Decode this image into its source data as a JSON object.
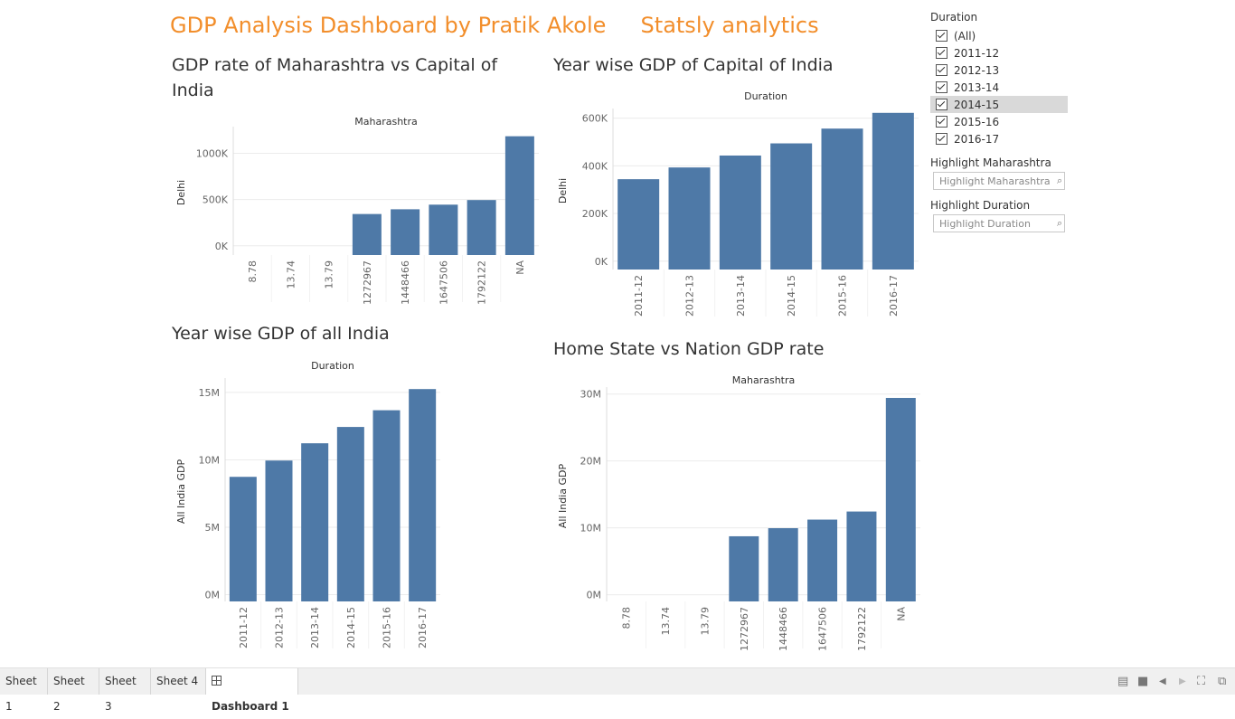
{
  "header": {
    "title": "GDP Analysis Dashboard by Pratik Akole     Statsly analytics"
  },
  "sheets": {
    "maha_vs_capital": "GDP rate of Maharashtra vs Capital of India",
    "capital_yearwise": "Year wise GDP of Capital of  India",
    "india_yearwise": "Year wise GDP of all India",
    "home_vs_nation": "Home State vs Nation GDP rate"
  },
  "chart_data": [
    {
      "type": "bar",
      "column_header": "Maharashtra",
      "ylabel": "Delhi",
      "categories": [
        "8.78",
        "13.74",
        "13.79",
        "1272967",
        "1448466",
        "1647506",
        "1792122",
        "NA"
      ],
      "values": [
        0,
        0,
        0,
        343798,
        395000,
        445000,
        495000,
        1185000
      ],
      "ylim": [
        -100000,
        1250000
      ],
      "yticks": [
        0,
        500000,
        1000000
      ],
      "ytick_labels": [
        "0K",
        "500K",
        "1000K"
      ],
      "grid": true
    },
    {
      "type": "bar",
      "column_header": "Duration",
      "ylabel": "Delhi",
      "categories": [
        "2011-12",
        "2012-13",
        "2013-14",
        "2014-15",
        "2015-16",
        "2016-17"
      ],
      "values": [
        343798,
        393000,
        443000,
        494000,
        556000,
        622000
      ],
      "ylim": [
        -35000,
        625000
      ],
      "yticks": [
        0,
        200000,
        400000,
        600000
      ],
      "ytick_labels": [
        "0K",
        "200K",
        "400K",
        "600K"
      ],
      "grid": true
    },
    {
      "type": "bar",
      "column_header": "Duration",
      "ylabel": "All India GDP",
      "categories": [
        "2011-12",
        "2012-13",
        "2013-14",
        "2014-15",
        "2015-16",
        "2016-17"
      ],
      "values": [
        8740000,
        9950000,
        11230000,
        12440000,
        13680000,
        15250000
      ],
      "ylim": [
        -500000,
        15800000
      ],
      "yticks": [
        0,
        5000000,
        10000000,
        15000000
      ],
      "ytick_labels": [
        "0M",
        "5M",
        "10M",
        "15M"
      ],
      "grid": true
    },
    {
      "type": "bar",
      "column_header": "Maharashtra",
      "ylabel": "All India GDP",
      "categories": [
        "8.78",
        "13.74",
        "13.79",
        "1272967",
        "1448466",
        "1647506",
        "1792122",
        "NA"
      ],
      "values": [
        0,
        0,
        0,
        8740000,
        9950000,
        11230000,
        12440000,
        29420000
      ],
      "ylim": [
        -1000000,
        30500000
      ],
      "yticks": [
        0,
        10000000,
        20000000,
        30000000
      ],
      "ytick_labels": [
        "0M",
        "10M",
        "20M",
        "30M"
      ],
      "grid": true
    }
  ],
  "filters": {
    "duration": {
      "title": "Duration",
      "options": [
        "(All)",
        "2011-12",
        "2012-13",
        "2013-14",
        "2014-15",
        "2015-16",
        "2016-17"
      ],
      "highlighted": "2014-15"
    },
    "highlight_maharashtra": {
      "title": "Highlight Maharashtra",
      "placeholder": "Highlight Maharashtra"
    },
    "highlight_duration": {
      "title": "Highlight Duration",
      "placeholder": "Highlight Duration"
    }
  },
  "tabs": {
    "sheet1": "Sheet 1",
    "sheet2": "Sheet 2",
    "sheet3": "Sheet 3",
    "sheet4": "Sheet 4",
    "dashboard1": "Dashboard 1"
  },
  "colors": {
    "bar": "#4e79a7",
    "title": "#f28e2b"
  }
}
